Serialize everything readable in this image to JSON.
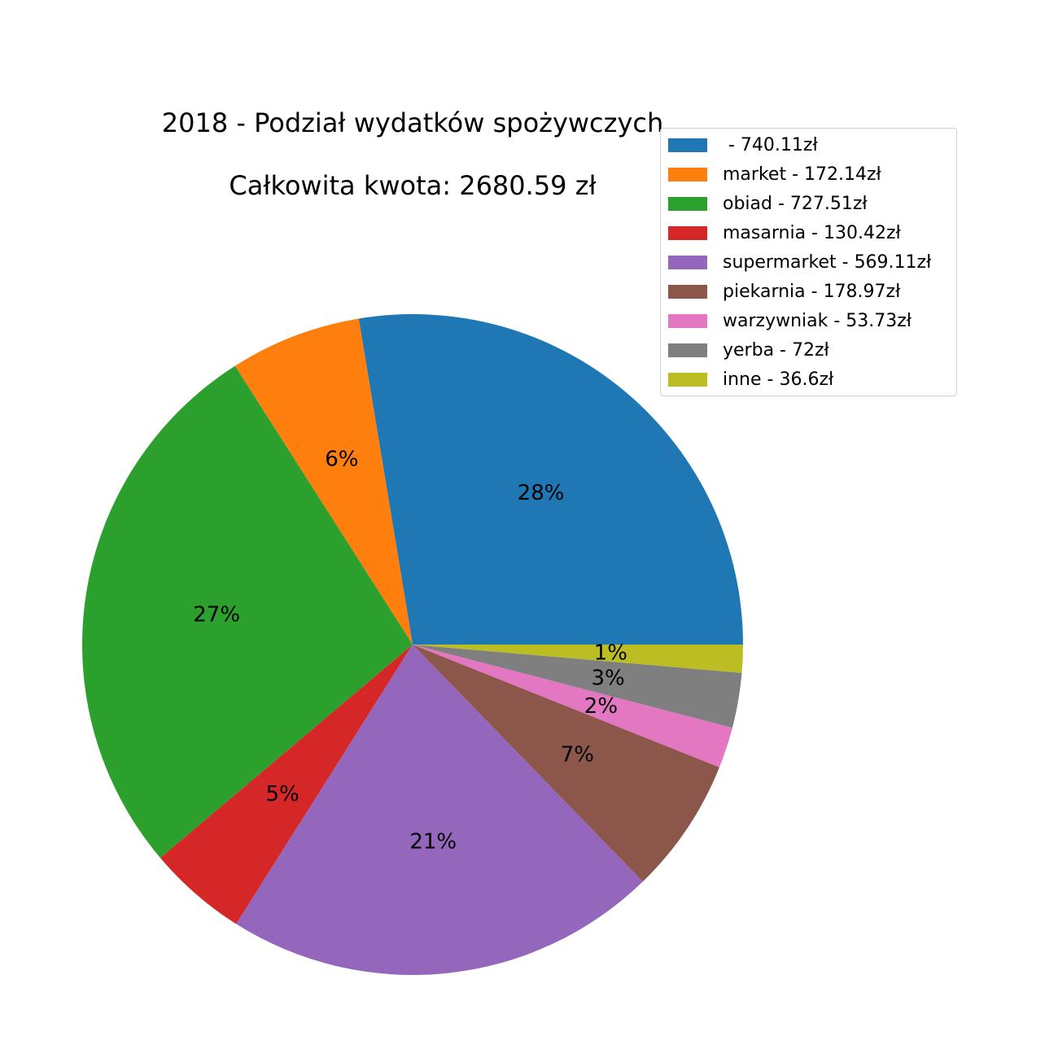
{
  "chart_data": {
    "type": "pie",
    "title_lines": [
      "2018 - Podział wydatków spożywczych",
      "Całkowita kwota: 2680.59 zł"
    ],
    "slices": [
      {
        "label": " - 740.11zł",
        "value": 740.11,
        "pct_label": "28%",
        "color": "#1f77b4"
      },
      {
        "label": "market - 172.14zł",
        "value": 172.14,
        "pct_label": "6%",
        "color": "#ff7f0e"
      },
      {
        "label": "obiad - 727.51zł",
        "value": 727.51,
        "pct_label": "27%",
        "color": "#2ca02c"
      },
      {
        "label": "masarnia - 130.42zł",
        "value": 130.42,
        "pct_label": "5%",
        "color": "#d62728"
      },
      {
        "label": "supermarket - 569.11zł",
        "value": 569.11,
        "pct_label": "21%",
        "color": "#9467bd"
      },
      {
        "label": "piekarnia - 178.97zł",
        "value": 178.97,
        "pct_label": "7%",
        "color": "#8c564b"
      },
      {
        "label": "warzywniak - 53.73zł",
        "value": 53.73,
        "pct_label": "2%",
        "color": "#e377c2"
      },
      {
        "label": "yerba - 72zł",
        "value": 72,
        "pct_label": "3%",
        "color": "#7f7f7f"
      },
      {
        "label": "inne - 36.6zł",
        "value": 36.6,
        "pct_label": "1%",
        "color": "#bcbd22"
      }
    ],
    "start_angle": 0,
    "direction": "counterclockwise",
    "legend_position": "top-right"
  }
}
